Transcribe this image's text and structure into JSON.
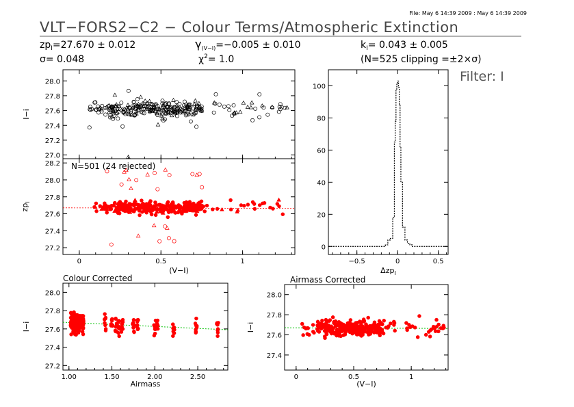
{
  "header": {
    "file_stamp": "File: May  6 14:39 2009 : May  6 14:39 2009",
    "title": "VLT−FORS2−C2  −  Colour Terms/Atmospheric Extinction",
    "zp_label": "zp",
    "zp_sub": "I",
    "zp_value": "=27.670  ±  0.012",
    "sigma_line": "σ=  0.048",
    "gamma_label": "γ",
    "gamma_sub": "(V−I)",
    "gamma_value": "=−0.005  ±  0.010",
    "chi_label": "χ",
    "chi_sup": "2",
    "chi_value": "=   1.0",
    "k_label": "k",
    "k_sub": "I",
    "k_value": "=  0.043  ±  0.005",
    "clip_line": "(N=525 clipping =±2×σ)",
    "filter_label": "Filter: I"
  },
  "chart_data": [
    {
      "id": "raw",
      "type": "scatter",
      "ylabel": "I−i",
      "xlim": [
        -0.1,
        1.32
      ],
      "ylim": [
        26.95,
        28.15
      ],
      "yticks": [
        27.0,
        27.2,
        27.4,
        27.6,
        27.8,
        28.0
      ],
      "xticks": [
        0.0,
        0.5,
        1.0
      ],
      "marker_color": "#000000",
      "markers": "open circles and triangles",
      "center": 27.62,
      "note": "~525 points, V−I mostly 0.15–0.85, I−i centred near 27.62"
    },
    {
      "id": "zp",
      "type": "scatter",
      "ylabel": "zp",
      "ylabel_sub": "I",
      "xlabel": "(V−I)",
      "annotation": "N=501 (24 rejected)",
      "xlim": [
        -0.1,
        1.32
      ],
      "ylim": [
        27.12,
        28.25
      ],
      "yticks": [
        27.2,
        27.4,
        27.6,
        27.8,
        28.0,
        28.2
      ],
      "xticks": [
        0.0,
        0.5,
        1.0
      ],
      "xtick_labels": [
        "0",
        "0.5",
        "1"
      ],
      "marker_color": "#ff0000",
      "fit_line": {
        "slope": -0.005,
        "intercept": 27.67,
        "color": "#ff0000",
        "style": "dotted"
      },
      "note": "501 accepted (filled), 24 rejected (open)"
    },
    {
      "id": "hist",
      "type": "histogram",
      "xlabel": "Δzp",
      "xlabel_sub": "I",
      "xlim": [
        -0.85,
        0.62
      ],
      "ylim": [
        -5,
        110
      ],
      "xticks": [
        -0.5,
        0.0,
        0.5
      ],
      "xtick_labels": [
        "−0.5",
        "0",
        "0.5"
      ],
      "yticks": [
        0,
        20,
        40,
        60,
        80,
        100
      ],
      "bins_left": [
        -0.15,
        -0.12,
        -0.09,
        -0.06,
        -0.04,
        -0.03,
        -0.02,
        -0.01,
        0.0,
        0.01,
        0.02,
        0.03,
        0.04,
        0.06,
        0.09,
        0.12,
        0.15
      ],
      "counts": [
        1,
        4,
        5,
        18,
        65,
        78,
        98,
        101,
        103,
        99,
        88,
        62,
        40,
        12,
        4,
        2,
        1
      ],
      "line_style": "dotted step"
    },
    {
      "id": "colour_corr",
      "type": "scatter",
      "title": "Colour Corrected",
      "ylabel": "I−i",
      "xlabel": "Airmass",
      "xlim": [
        0.93,
        2.85
      ],
      "ylim": [
        27.15,
        28.1
      ],
      "yticks": [
        27.2,
        27.4,
        27.6,
        27.8,
        28.0
      ],
      "xticks": [
        1.0,
        1.5,
        2.0,
        2.5
      ],
      "xtick_labels": [
        "1.00",
        "1.50",
        "2.00",
        "2.50"
      ],
      "marker_color": "#ff0000",
      "fit_line": {
        "slope": -0.043,
        "intercept": 27.67,
        "color": "#00c000",
        "style": "dotted"
      },
      "airmass_groups": [
        1.03,
        1.05,
        1.08,
        1.1,
        1.12,
        1.16,
        1.42,
        1.5,
        1.55,
        1.58,
        1.62,
        1.75,
        1.8,
        2.0,
        2.03,
        2.22,
        2.48,
        2.73
      ]
    },
    {
      "id": "airmass_corr",
      "type": "scatter",
      "title": "Airmass Corrected",
      "ylabel": "I−i",
      "xlabel": "(V−I)",
      "xlim": [
        -0.1,
        1.32
      ],
      "ylim": [
        27.25,
        28.1
      ],
      "yticks": [
        27.4,
        27.6,
        27.8,
        28.0
      ],
      "xticks": [
        0.0,
        0.5,
        1.0
      ],
      "xtick_labels": [
        "0",
        "0.5",
        "1"
      ],
      "marker_color": "#ff0000",
      "fit_line": {
        "slope": -0.005,
        "intercept": 27.67,
        "color": "#00c000",
        "style": "dotted"
      }
    }
  ]
}
